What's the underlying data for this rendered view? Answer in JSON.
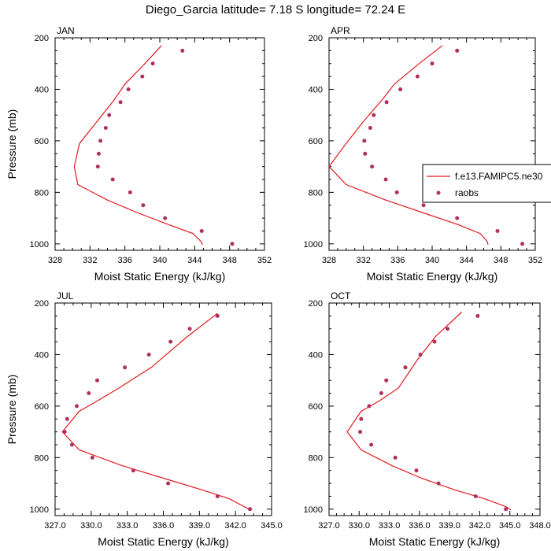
{
  "title": "Diego_Garcia  latitude= 7.18 S longitude= 72.24 E",
  "legend": {
    "model_label": "f.e13.FAMIPC5.ne30",
    "obs_label": "raobs",
    "model_color": "#e31a1c",
    "obs_color": "#b03060"
  },
  "chart_data": [
    {
      "type": "line",
      "panel": "JAN",
      "xlabel": "Moist Static Energy (kJ/kg)",
      "ylabel": "Pressure (mb)",
      "xlim": [
        328,
        352
      ],
      "xticks": [
        328,
        332,
        336,
        340,
        344,
        348,
        352
      ],
      "xtick_labels": [
        "328",
        "332",
        "336",
        "340",
        "344",
        "348",
        "352"
      ],
      "ylim": [
        1025,
        200
      ],
      "yticks": [
        200,
        400,
        600,
        800,
        1000
      ],
      "model": {
        "p": [
          230,
          300,
          380,
          440,
          525,
          610,
          700,
          770,
          830,
          880,
          925,
          960,
          990,
          1003
        ],
        "x": [
          340.2,
          338.3,
          336.0,
          334.8,
          332.8,
          330.8,
          330.2,
          330.6,
          334.0,
          337.5,
          341.0,
          343.8,
          344.7,
          344.9
        ]
      },
      "obs": {
        "p": [
          250,
          300,
          350,
          400,
          450,
          500,
          550,
          600,
          650,
          700,
          750,
          800,
          850,
          900,
          950,
          1000
        ],
        "x": [
          342.6,
          339.2,
          338.0,
          336.4,
          335.5,
          334.2,
          333.8,
          333.2,
          333.0,
          332.9,
          334.6,
          336.6,
          338.1,
          340.6,
          344.8,
          348.3
        ]
      }
    },
    {
      "type": "line",
      "panel": "APR",
      "xlabel": "Moist Static Energy (kJ/kg)",
      "ylabel": "",
      "xlim": [
        328,
        352
      ],
      "xticks": [
        328,
        332,
        336,
        340,
        344,
        348,
        352
      ],
      "xtick_labels": [
        "328",
        "332",
        "336",
        "340",
        "344",
        "348",
        "352"
      ],
      "ylim": [
        1025,
        200
      ],
      "yticks": [
        200,
        400,
        600,
        800,
        1000
      ],
      "model": {
        "p": [
          230,
          300,
          380,
          440,
          525,
          610,
          700,
          770,
          830,
          880,
          925,
          960,
          990,
          1003
        ],
        "x": [
          341.2,
          338.5,
          335.6,
          334.2,
          332.0,
          330.0,
          328.0,
          330.0,
          334.6,
          339.0,
          343.0,
          345.6,
          346.4,
          346.5
        ]
      },
      "obs": {
        "p": [
          250,
          300,
          350,
          400,
          450,
          500,
          550,
          600,
          650,
          700,
          750,
          800,
          850,
          900,
          950,
          1000
        ],
        "x": [
          342.9,
          340.0,
          338.3,
          336.3,
          334.7,
          333.2,
          332.8,
          332.1,
          332.2,
          333.0,
          334.6,
          335.9,
          339.0,
          342.9,
          347.6,
          350.5
        ]
      }
    },
    {
      "type": "line",
      "panel": "JUL",
      "xlabel": "Moist Static Energy (kJ/kg)",
      "ylabel": "Pressure (mb)",
      "xlim": [
        327,
        345
      ],
      "xticks": [
        327,
        330,
        333,
        336,
        339,
        342,
        345
      ],
      "xtick_labels": [
        "327.0",
        "330.0",
        "333.0",
        "336.0",
        "339.0",
        "342.0",
        "345.0"
      ],
      "ylim": [
        1025,
        200
      ],
      "yticks": [
        200,
        400,
        600,
        800,
        1000
      ],
      "model": {
        "p": [
          240,
          330,
          450,
          530,
          580,
          620,
          700,
          770,
          830,
          880,
          925,
          960,
          990,
          1003
        ],
        "x": [
          340.5,
          338.0,
          335.0,
          332.3,
          330.5,
          329.0,
          327.6,
          329.0,
          332.5,
          336.0,
          339.2,
          341.5,
          342.7,
          343.2
        ]
      },
      "obs": {
        "p": [
          250,
          300,
          350,
          400,
          450,
          500,
          550,
          600,
          650,
          700,
          750,
          800,
          850,
          900,
          950,
          1000
        ],
        "x": [
          340.5,
          338.2,
          336.6,
          334.8,
          332.8,
          330.5,
          329.8,
          328.8,
          328.0,
          327.8,
          328.4,
          330.1,
          333.5,
          336.4,
          340.5,
          343.2
        ]
      }
    },
    {
      "type": "line",
      "panel": "OCT",
      "xlabel": "Moist Static Energy (kJ/kg)",
      "ylabel": "",
      "xlim": [
        327,
        348
      ],
      "xticks": [
        327,
        330,
        333,
        336,
        339,
        342,
        345,
        348
      ],
      "xtick_labels": [
        "327.0",
        "330.0",
        "333.0",
        "336.0",
        "339.0",
        "342.0",
        "345.0",
        "348.0"
      ],
      "ylim": [
        1025,
        200
      ],
      "yticks": [
        200,
        400,
        600,
        800,
        1000
      ],
      "model": {
        "p": [
          235,
          330,
          420,
          530,
          580,
          620,
          700,
          770,
          830,
          880,
          925,
          960,
          990,
          1003
        ],
        "x": [
          340.2,
          337.6,
          335.8,
          333.9,
          332.0,
          330.2,
          328.8,
          330.2,
          333.2,
          336.2,
          339.5,
          342.5,
          344.6,
          345.1
        ]
      },
      "obs": {
        "p": [
          250,
          300,
          350,
          400,
          450,
          500,
          550,
          600,
          650,
          700,
          750,
          800,
          850,
          900,
          950,
          1000
        ],
        "x": [
          341.8,
          338.8,
          337.5,
          336.1,
          334.6,
          332.7,
          332.2,
          331.0,
          330.2,
          330.1,
          331.2,
          333.6,
          335.7,
          337.9,
          341.6,
          344.6
        ]
      }
    }
  ]
}
